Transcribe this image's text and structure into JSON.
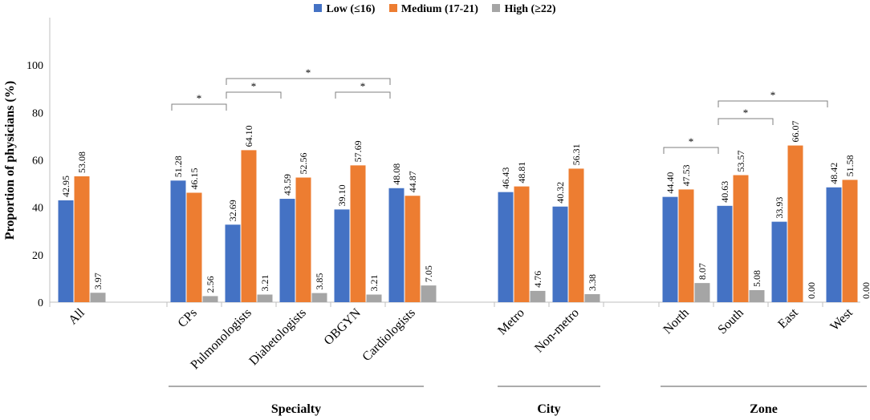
{
  "chart_data": {
    "type": "bar",
    "ylabel": "Proportion of physicians (%)",
    "ylim": [
      0,
      120
    ],
    "yticks": [
      0,
      20,
      40,
      60,
      80,
      100
    ],
    "series": [
      {
        "name": "Low (≤16)",
        "color": "#4472C4"
      },
      {
        "name": "Medium (17-21)",
        "color": "#ED7D31"
      },
      {
        "name": "High (≥22)",
        "color": "#A5A5A5"
      }
    ],
    "categories": [
      "All",
      "CPs",
      "Pulmonologists",
      "Diabetologists",
      "OBGYN",
      "Cardiologists",
      "Metro",
      "Non-metro",
      "North",
      "South",
      "East",
      "West"
    ],
    "values": [
      [
        42.95,
        53.08,
        3.97
      ],
      [
        51.28,
        46.15,
        2.56
      ],
      [
        32.69,
        64.1,
        3.21
      ],
      [
        43.59,
        52.56,
        3.85
      ],
      [
        39.1,
        57.69,
        3.21
      ],
      [
        48.08,
        44.87,
        7.05
      ],
      [
        46.43,
        48.81,
        4.76
      ],
      [
        40.32,
        56.31,
        3.38
      ],
      [
        44.4,
        47.53,
        8.07
      ],
      [
        40.63,
        53.57,
        5.08
      ],
      [
        33.93,
        66.07,
        0.0
      ],
      [
        48.42,
        51.58,
        0.0
      ]
    ],
    "groups": [
      {
        "label": "Specialty",
        "from": 1,
        "to": 5
      },
      {
        "label": "City",
        "from": 6,
        "to": 7
      },
      {
        "label": "Zone",
        "from": 8,
        "to": 11
      }
    ],
    "significance": [
      {
        "from": 1,
        "to": 2,
        "label": "*"
      },
      {
        "from": 2,
        "to": 3,
        "label": "*"
      },
      {
        "from": 2,
        "to": 5,
        "label": "*"
      },
      {
        "from": 4,
        "to": 5,
        "label": "*"
      },
      {
        "from": 8,
        "to": 9,
        "label": "*"
      },
      {
        "from": 9,
        "to": 10,
        "label": "*"
      },
      {
        "from": 9,
        "to": 11,
        "label": "*"
      }
    ]
  }
}
